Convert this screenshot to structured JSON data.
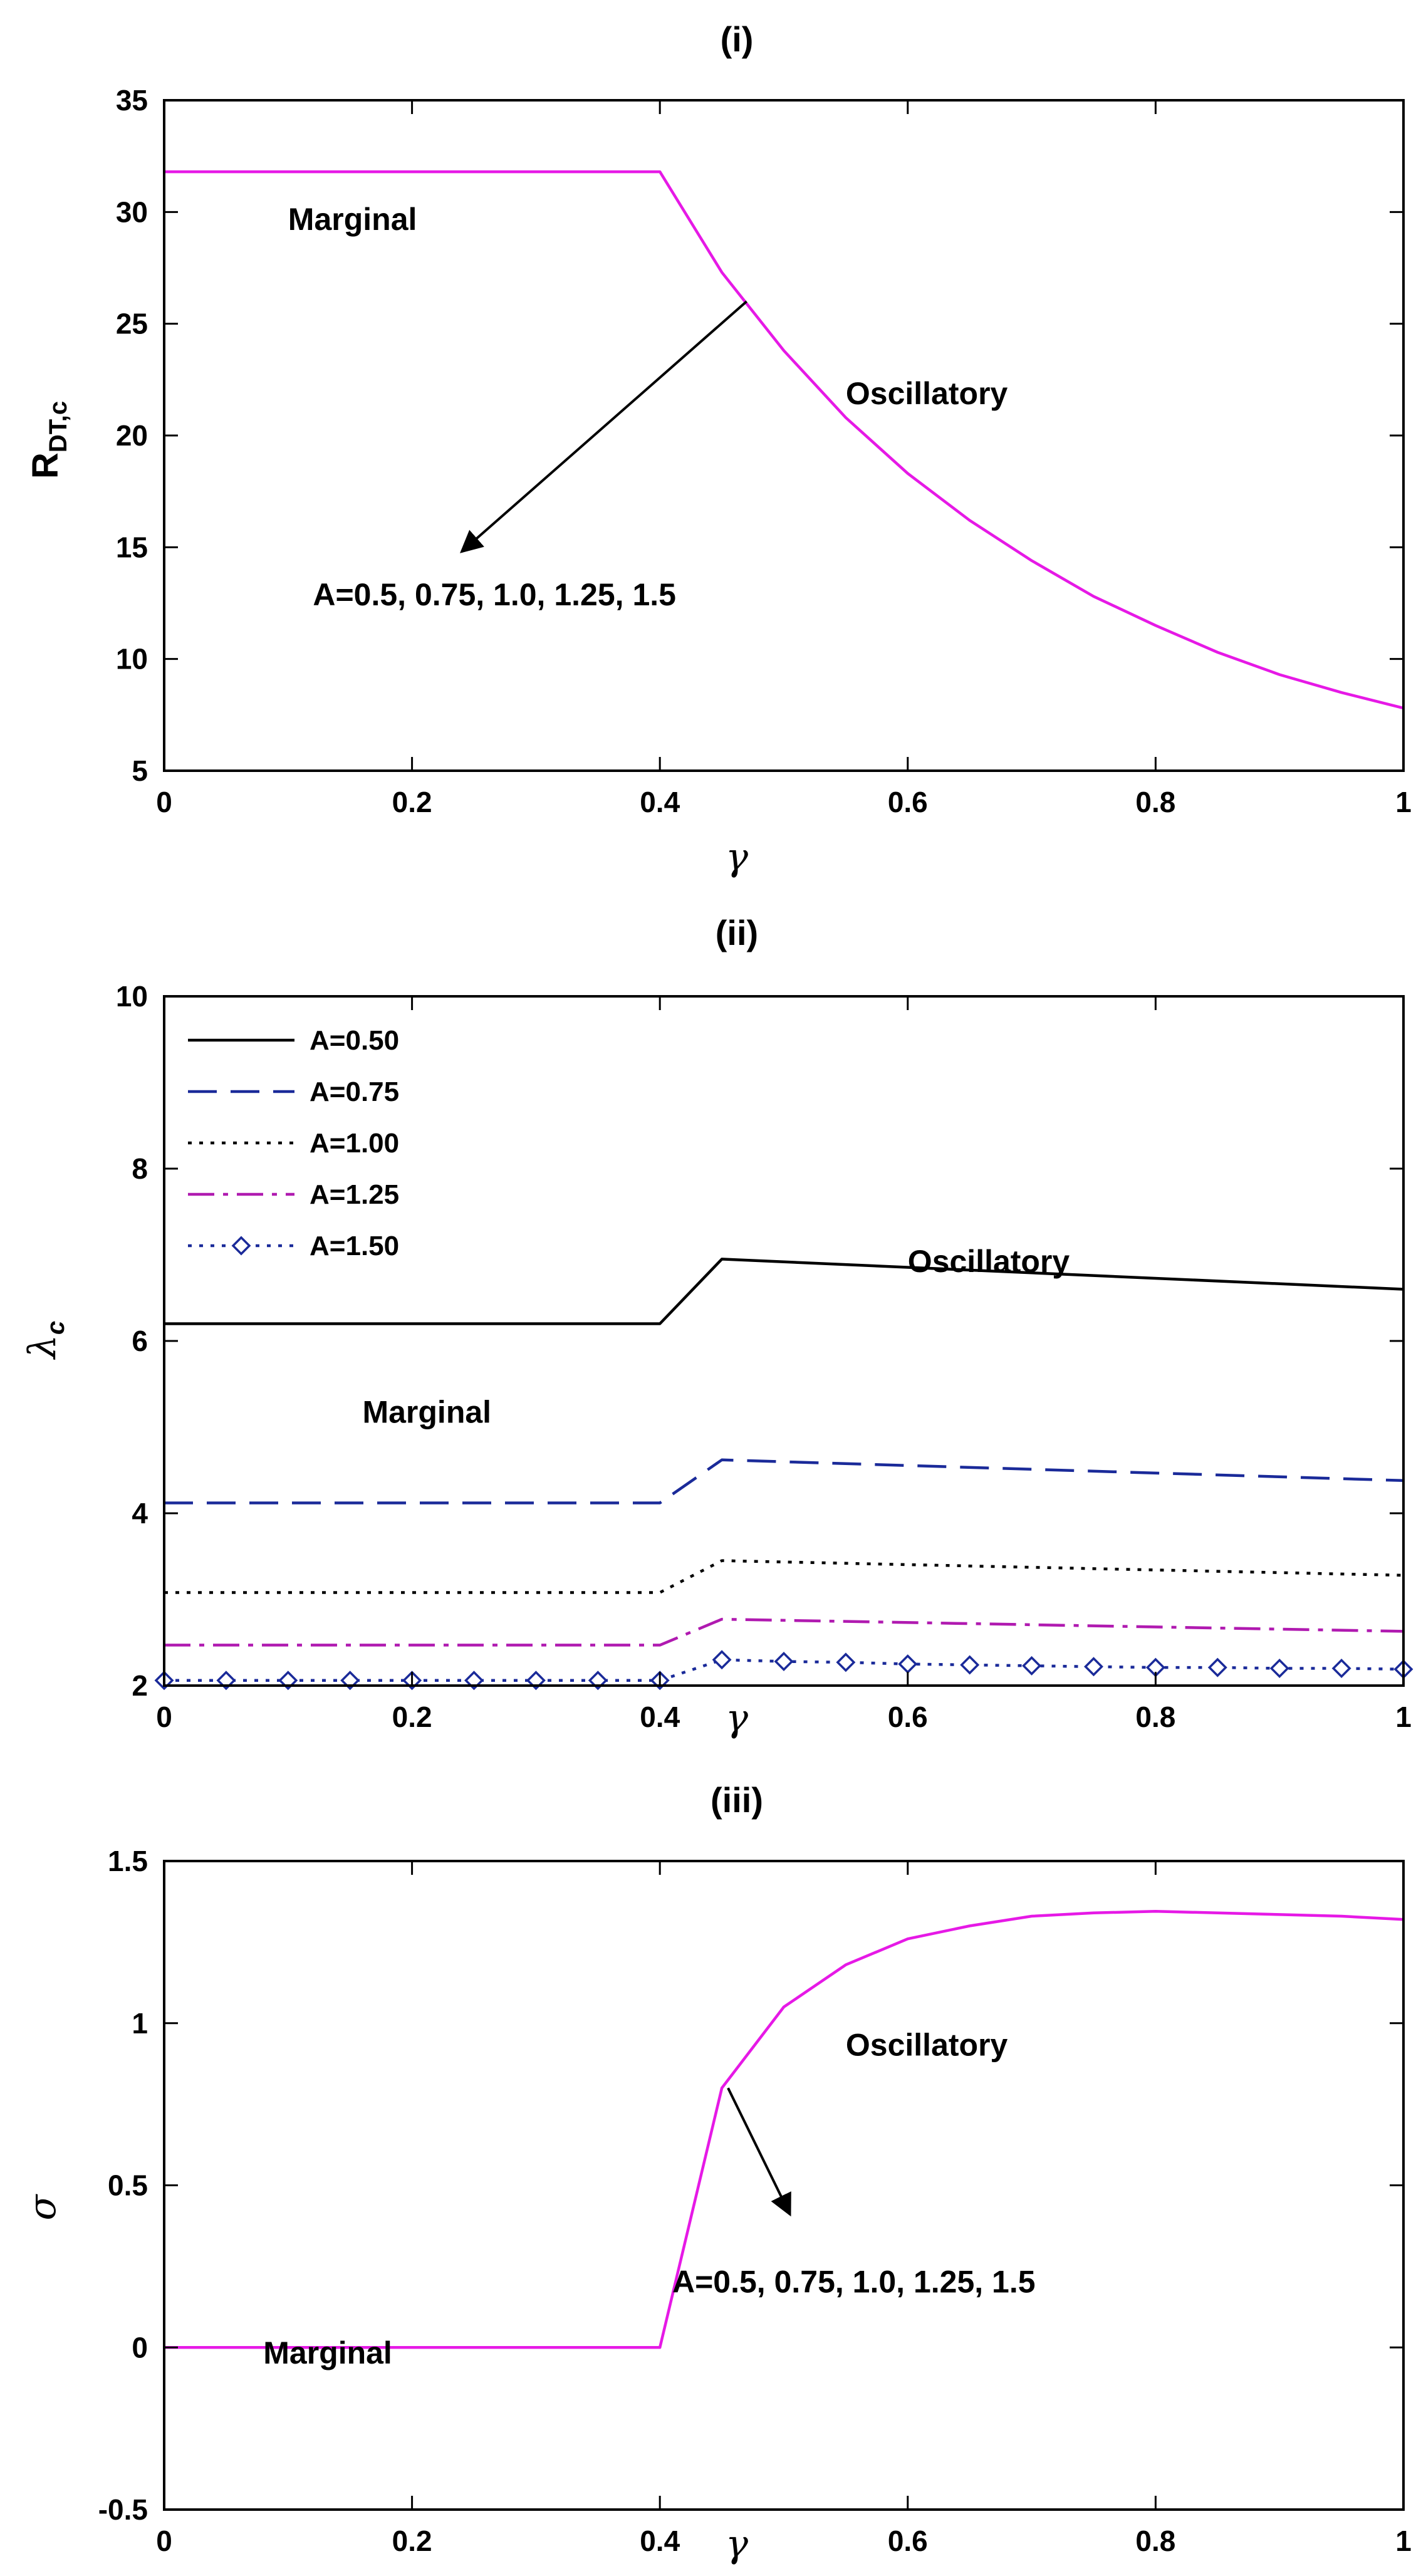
{
  "chart_data": [
    {
      "type": "line",
      "title": "(i)",
      "xlabel": "γ",
      "ylabel": "R",
      "ylabel_sub": "DT,c",
      "xlim": [
        0,
        1
      ],
      "ylim": [
        5,
        35
      ],
      "xticks": [
        0,
        0.2,
        0.4,
        0.6,
        0.8,
        1
      ],
      "xtick_labels": [
        "0",
        "0.2",
        "0.4",
        "0.6",
        "0.8",
        "1"
      ],
      "yticks": [
        5,
        10,
        15,
        20,
        25,
        30,
        35
      ],
      "ytick_labels": [
        "5",
        "10",
        "15",
        "20",
        "25",
        "30",
        "35"
      ],
      "series": [
        {
          "name": "A=0.5, 0.75, 1.0, 1.25, 1.5",
          "color": "#e619e6",
          "x": [
            0,
            0.4,
            0.45,
            0.5,
            0.55,
            0.6,
            0.65,
            0.7,
            0.75,
            0.8,
            0.85,
            0.9,
            0.95,
            1.0
          ],
          "y": [
            31.8,
            31.8,
            27.3,
            23.8,
            20.8,
            18.3,
            16.2,
            14.4,
            12.8,
            11.5,
            10.3,
            9.3,
            8.5,
            7.8
          ]
        }
      ],
      "annotations": [
        {
          "text": "Marginal",
          "x": 0.1,
          "y": 29.2
        },
        {
          "text": "Oscillatory",
          "x": 0.55,
          "y": 21.4
        },
        {
          "text": "A=0.5, 0.75, 1.0, 1.25, 1.5",
          "x": 0.12,
          "y": 12.4
        }
      ],
      "arrow": {
        "from": [
          0.47,
          26.0
        ],
        "to": [
          0.24,
          14.8
        ]
      }
    },
    {
      "type": "line",
      "title": "(ii)",
      "xlabel": "γ",
      "ylabel": "λ",
      "ylabel_sub": "c",
      "xlim": [
        0,
        1
      ],
      "ylim": [
        2,
        10
      ],
      "xticks": [
        0,
        0.2,
        0.4,
        0.6,
        0.8,
        1
      ],
      "xtick_labels": [
        "0",
        "0.2",
        "0.4",
        "0.6",
        "0.8",
        "1"
      ],
      "yticks": [
        2,
        4,
        6,
        8,
        10
      ],
      "ytick_labels": [
        "2",
        "4",
        "6",
        "8",
        "10"
      ],
      "legend_position": "top-left",
      "series": [
        {
          "name": "A=0.50",
          "color": "#000000",
          "dash": "solid",
          "x": [
            0,
            0.4,
            0.45,
            1.0
          ],
          "y": [
            6.2,
            6.2,
            6.95,
            6.6
          ]
        },
        {
          "name": "A=0.75",
          "color": "#1a2a99",
          "dash": "dashed",
          "x": [
            0,
            0.4,
            0.45,
            1.0
          ],
          "y": [
            4.12,
            4.12,
            4.62,
            4.38
          ]
        },
        {
          "name": "A=1.00",
          "color": "#000000",
          "dash": "dotted",
          "x": [
            0,
            0.4,
            0.45,
            1.0
          ],
          "y": [
            3.08,
            3.08,
            3.45,
            3.28
          ]
        },
        {
          "name": "A=1.25",
          "color": "#b01ab0",
          "dash": "dashdot",
          "x": [
            0,
            0.4,
            0.45,
            1.0
          ],
          "y": [
            2.47,
            2.47,
            2.77,
            2.63
          ]
        },
        {
          "name": "A=1.50",
          "color": "#1a2a99",
          "dash": "dotted-diamond",
          "x": [
            0,
            0.05,
            0.1,
            0.15,
            0.2,
            0.25,
            0.3,
            0.35,
            0.4,
            0.45,
            0.5,
            0.55,
            0.6,
            0.65,
            0.7,
            0.75,
            0.8,
            0.85,
            0.9,
            0.95,
            1.0
          ],
          "y": [
            2.06,
            2.06,
            2.06,
            2.06,
            2.06,
            2.06,
            2.06,
            2.06,
            2.06,
            2.3,
            2.28,
            2.27,
            2.25,
            2.24,
            2.23,
            2.22,
            2.21,
            2.21,
            2.2,
            2.2,
            2.19
          ]
        }
      ],
      "annotations": [
        {
          "text": "Oscillatory",
          "x": 0.6,
          "y": 6.8
        },
        {
          "text": "Marginal",
          "x": 0.16,
          "y": 5.05
        }
      ]
    },
    {
      "type": "line",
      "title": "(iii)",
      "xlabel": "γ",
      "ylabel": "σ",
      "xlim": [
        0,
        1
      ],
      "ylim": [
        -0.5,
        1.5
      ],
      "xticks": [
        0,
        0.2,
        0.4,
        0.6,
        0.8,
        1
      ],
      "xtick_labels": [
        "0",
        "0.2",
        "0.4",
        "0.6",
        "0.8",
        "1"
      ],
      "yticks": [
        -0.5,
        0,
        0.5,
        1,
        1.5
      ],
      "ytick_labels": [
        "-0.5",
        "0",
        "0.5",
        "1",
        "1.5"
      ],
      "series": [
        {
          "name": "A=0.5, 0.75, 1.0, 1.25, 1.5",
          "color": "#e619e6",
          "x": [
            0,
            0.4,
            0.45,
            0.5,
            0.55,
            0.6,
            0.65,
            0.7,
            0.75,
            0.8,
            0.85,
            0.9,
            0.95,
            1.0
          ],
          "y": [
            0,
            0,
            0.8,
            1.05,
            1.18,
            1.26,
            1.3,
            1.33,
            1.34,
            1.345,
            1.34,
            1.335,
            1.33,
            1.32
          ]
        }
      ],
      "annotations": [
        {
          "text": "Oscillatory",
          "x": 0.55,
          "y": 0.9
        },
        {
          "text": "A=0.5, 0.75, 1.0, 1.25, 1.5",
          "x": 0.41,
          "y": 0.17
        },
        {
          "text": "Marginal",
          "x": 0.08,
          "y": -0.05
        }
      ],
      "arrow": {
        "from": [
          0.455,
          0.8
        ],
        "to": [
          0.505,
          0.41
        ]
      }
    }
  ]
}
